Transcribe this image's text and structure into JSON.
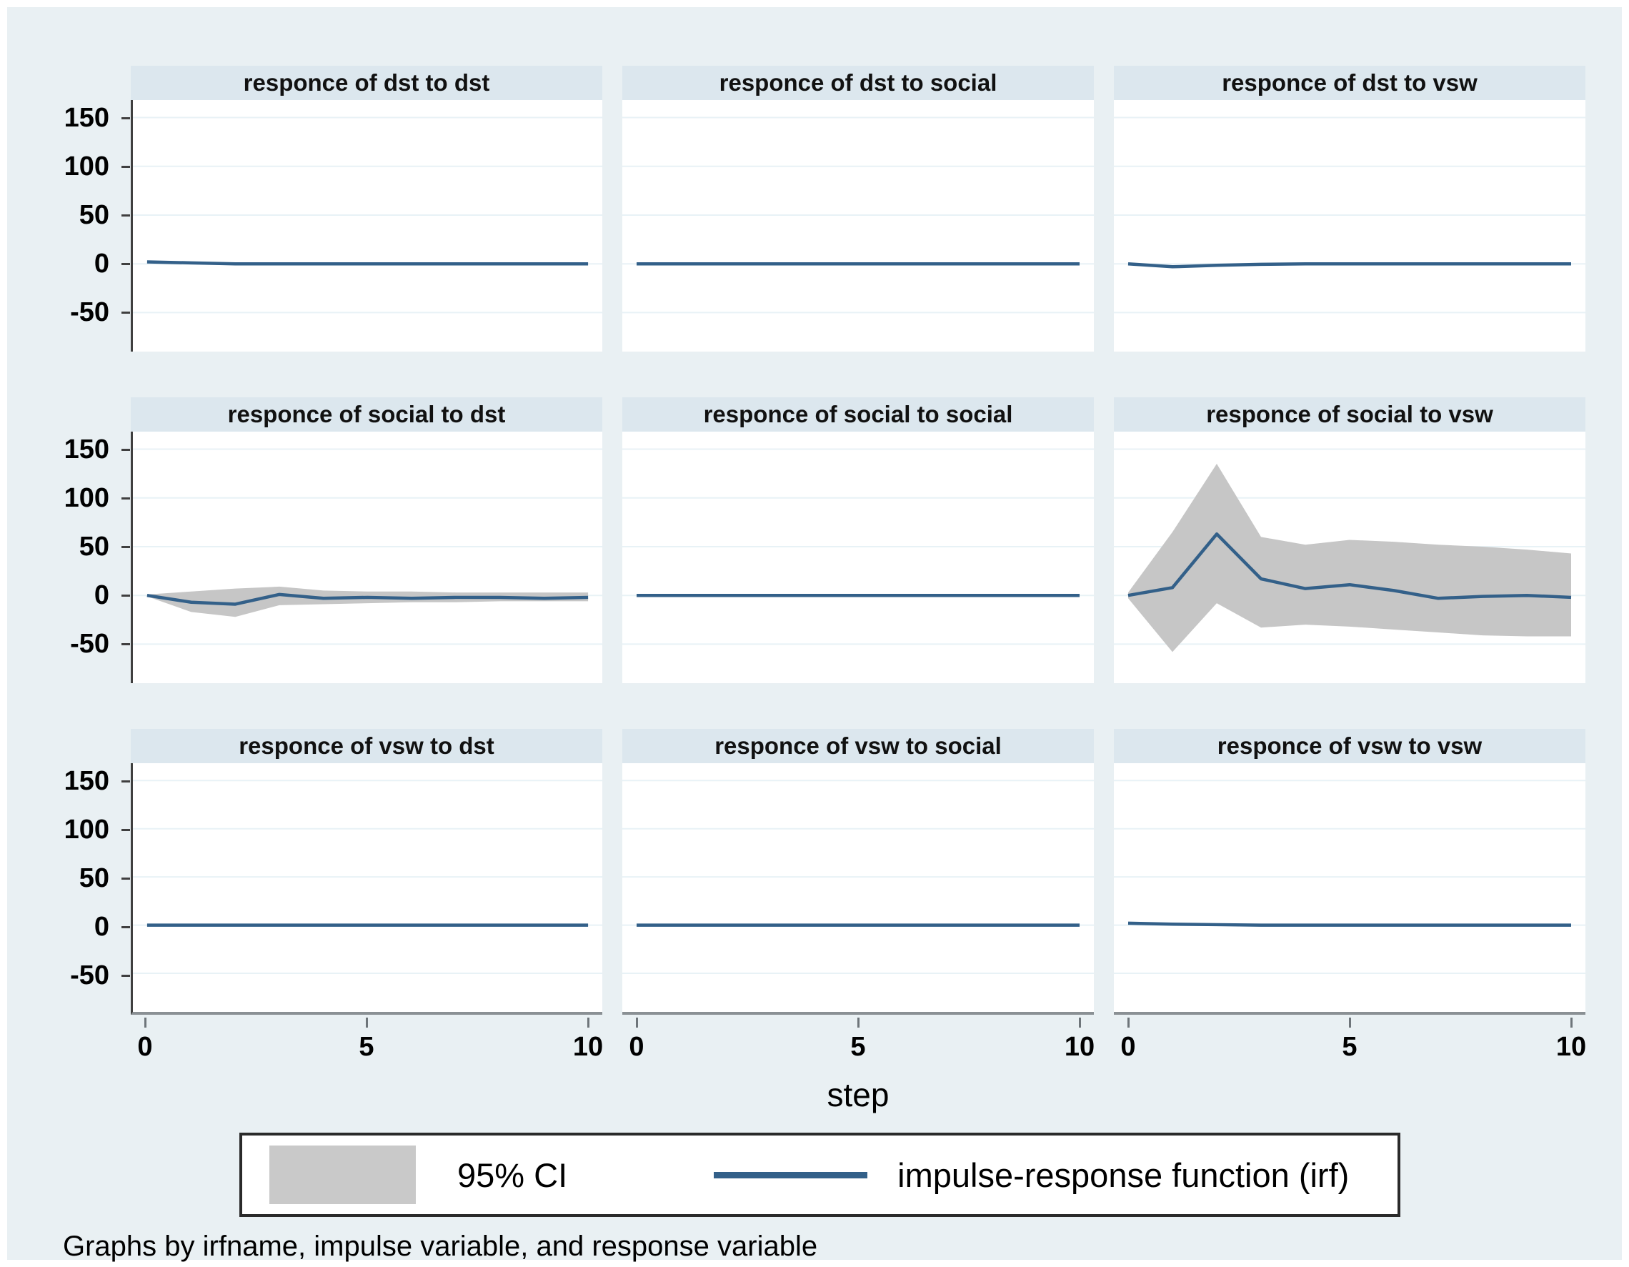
{
  "colors": {
    "canvas_bg": "#e9f0f3",
    "panel_header_bg": "#dce7ee",
    "plot_bg": "#ffffff",
    "grid": "#e8f2f6",
    "y_axis": "#3f3f3f",
    "x_axis": "#8a9094",
    "irf_line": "#336089",
    "ci_band": "#c6c6c6",
    "legend_swatch": "#c9c9c9"
  },
  "chart_data": {
    "type": "line",
    "layout": "3x3 small multiples (impulse-response graphs with 95% CI bands)",
    "x": [
      0,
      1,
      2,
      3,
      4,
      5,
      6,
      7,
      8,
      9,
      10
    ],
    "xticks": [
      "0",
      "5",
      "10"
    ],
    "xtick_values": [
      0,
      5,
      10
    ],
    "yticks": [
      "150",
      "100",
      "50",
      "0",
      "-50"
    ],
    "ytick_values": [
      150,
      100,
      50,
      0,
      -50
    ],
    "ylim": [
      -90,
      168
    ],
    "xlim": [
      -0.32,
      10.32
    ],
    "xlabel": "step",
    "grid": true,
    "panels": [
      {
        "title": "responce of dst to dst",
        "irf": [
          2,
          1,
          0,
          0,
          0,
          0,
          0,
          0,
          0,
          0,
          0
        ],
        "ci_upper": [
          2,
          1,
          0,
          0,
          0,
          0,
          0,
          0,
          0,
          0,
          0
        ],
        "ci_lower": [
          2,
          1,
          0,
          0,
          0,
          0,
          0,
          0,
          0,
          0,
          0
        ]
      },
      {
        "title": "responce of dst to social",
        "irf": [
          0,
          0,
          0,
          0,
          0,
          0,
          0,
          0,
          0,
          0,
          0
        ],
        "ci_upper": [
          0,
          0,
          0,
          0,
          0,
          0,
          0,
          0,
          0,
          0,
          0
        ],
        "ci_lower": [
          0,
          0,
          0,
          0,
          0,
          0,
          0,
          0,
          0,
          0,
          0
        ]
      },
      {
        "title": "responce of dst to vsw",
        "irf": [
          0,
          -3,
          -1.5,
          -0.5,
          0,
          0,
          0,
          0,
          0,
          0,
          0
        ],
        "ci_upper": [
          0,
          -3,
          -1.5,
          -0.5,
          0,
          0,
          0,
          0,
          0,
          0,
          0
        ],
        "ci_lower": [
          0,
          -3,
          -1.5,
          -0.5,
          0,
          0,
          0,
          0,
          0,
          0,
          0
        ]
      },
      {
        "title": "responce of social to dst",
        "irf": [
          0,
          -7,
          -9,
          1,
          -3,
          -2,
          -3,
          -2,
          -2,
          -3,
          -2
        ],
        "ci_upper": [
          1,
          4,
          7,
          9,
          5,
          4,
          4,
          3,
          3,
          3,
          3
        ],
        "ci_lower": [
          -1,
          -17,
          -22,
          -10,
          -9,
          -8,
          -7,
          -7,
          -6,
          -6,
          -6
        ]
      },
      {
        "title": "responce of social to social",
        "irf": [
          0,
          0,
          0,
          0,
          0,
          0,
          0,
          0,
          0,
          0,
          0
        ],
        "ci_upper": [
          0,
          0,
          0,
          0,
          0,
          0,
          0,
          0,
          0,
          0,
          0
        ],
        "ci_lower": [
          0,
          0,
          0,
          0,
          0,
          0,
          0,
          0,
          0,
          0,
          0
        ]
      },
      {
        "title": "responce of social to vsw",
        "irf": [
          0,
          8,
          63,
          17,
          7,
          11,
          5,
          -3,
          -1,
          0,
          -2
        ],
        "ci_upper": [
          3,
          65,
          135,
          60,
          52,
          57,
          55,
          52,
          50,
          47,
          43
        ],
        "ci_lower": [
          -3,
          -58,
          -8,
          -33,
          -30,
          -32,
          -35,
          -38,
          -41,
          -42,
          -42
        ]
      },
      {
        "title": "responce of vsw to dst",
        "irf": [
          0,
          0,
          0,
          0,
          0,
          0,
          0,
          0,
          0,
          0,
          0
        ],
        "ci_upper": [
          0,
          0,
          0,
          0,
          0,
          0,
          0,
          0,
          0,
          0,
          0
        ],
        "ci_lower": [
          0,
          0,
          0,
          0,
          0,
          0,
          0,
          0,
          0,
          0,
          0
        ]
      },
      {
        "title": "responce of vsw to social",
        "irf": [
          0,
          0,
          0,
          0,
          0,
          0,
          0,
          0,
          0,
          0,
          0
        ],
        "ci_upper": [
          0,
          0,
          0,
          0,
          0,
          0,
          0,
          0,
          0,
          0,
          0
        ],
        "ci_lower": [
          0,
          0,
          0,
          0,
          0,
          0,
          0,
          0,
          0,
          0,
          0
        ]
      },
      {
        "title": "responce of vsw to vsw",
        "irf": [
          2,
          1,
          0.5,
          0,
          0,
          0,
          0,
          0,
          0,
          0,
          0
        ],
        "ci_upper": [
          2,
          1,
          0.5,
          0,
          0,
          0,
          0,
          0,
          0,
          0,
          0
        ],
        "ci_lower": [
          2,
          1,
          0.5,
          0,
          0,
          0,
          0,
          0,
          0,
          0,
          0
        ]
      }
    ],
    "legend": [
      {
        "swatch": "ci-band",
        "label": "95% CI"
      },
      {
        "swatch": "irf-line",
        "label": "impulse-response function (irf)"
      }
    ],
    "legend_position": "bottom-center",
    "note": "Graphs by irfname, impulse variable, and response variable"
  }
}
